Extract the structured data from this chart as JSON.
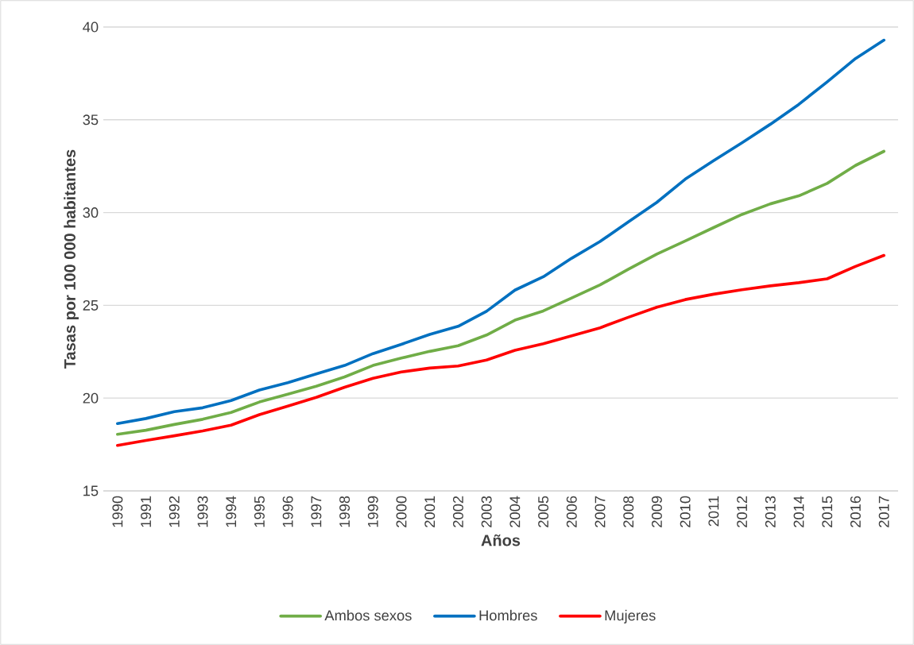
{
  "chart_data": {
    "type": "line",
    "xlabel": "Años",
    "ylabel": "Tasas por 100 000 habitantes",
    "categories": [
      "1990",
      "1991",
      "1992",
      "1993",
      "1994",
      "1995",
      "1996",
      "1997",
      "1998",
      "1999",
      "2000",
      "2001",
      "2002",
      "2003",
      "2004",
      "2005",
      "2006",
      "2007",
      "2008",
      "2009",
      "2010",
      "2011",
      "2012",
      "2013",
      "2014",
      "2015",
      "2016",
      "2017"
    ],
    "series": [
      {
        "name": "Ambos sexos",
        "color": "#70ad47",
        "values": [
          18.05,
          18.27,
          18.58,
          18.86,
          19.23,
          19.79,
          20.21,
          20.64,
          21.14,
          21.76,
          22.16,
          22.52,
          22.82,
          23.4,
          24.2,
          24.7,
          25.4,
          26.1,
          26.95,
          27.76,
          28.47,
          29.19,
          29.9,
          30.47,
          30.9,
          31.57,
          32.54,
          33.3
        ]
      },
      {
        "name": "Hombres",
        "color": "#0070c0",
        "values": [
          18.63,
          18.9,
          19.27,
          19.48,
          19.87,
          20.44,
          20.83,
          21.3,
          21.76,
          22.4,
          22.9,
          23.43,
          23.87,
          24.68,
          25.82,
          26.54,
          27.54,
          28.44,
          29.5,
          30.55,
          31.8,
          32.8,
          33.76,
          34.76,
          35.83,
          37.04,
          38.3,
          39.29
        ]
      },
      {
        "name": "Mujeres",
        "color": "#ff0000",
        "values": [
          17.45,
          17.72,
          17.97,
          18.23,
          18.54,
          19.11,
          19.57,
          20.04,
          20.59,
          21.07,
          21.41,
          21.62,
          21.73,
          22.05,
          22.58,
          22.93,
          23.36,
          23.79,
          24.36,
          24.9,
          25.31,
          25.6,
          25.84,
          26.05,
          26.22,
          26.43,
          27.1,
          27.69
        ]
      }
    ],
    "ylim": [
      15,
      40
    ],
    "yticks": [
      15,
      20,
      25,
      30,
      35,
      40
    ],
    "grid": "y",
    "legend": "bottom",
    "marker": "none",
    "line_style": "solid"
  }
}
